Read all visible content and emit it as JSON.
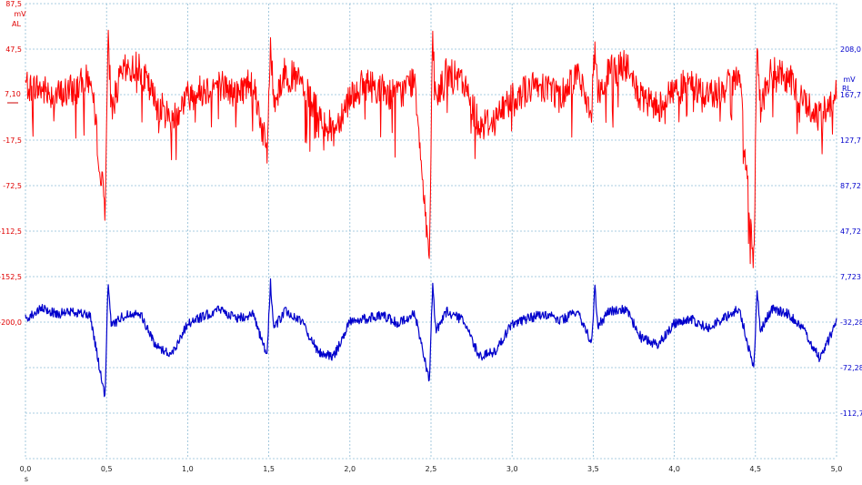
{
  "chart_data": {
    "type": "line",
    "title": "",
    "grid": true,
    "xlabel": "s",
    "x_ticks": [
      "0,0",
      "0,5",
      "1,0",
      "1,5",
      "2,0",
      "2,5",
      "3,0",
      "3,5",
      "4,0",
      "4,5",
      "5,0"
    ],
    "xlim": [
      0,
      5
    ],
    "left_axis": {
      "unit": "mV",
      "channel": "AL",
      "color": "#ff0000",
      "cursor_label": "7,10",
      "ticks": [
        "87,5",
        "47,5",
        "",
        "-17,5",
        "-72,5",
        "-112,5",
        "-152,5",
        "-200,0"
      ]
    },
    "right_axis": {
      "unit": "mV",
      "channel": "RL",
      "color": "#0000cc",
      "ticks": [
        "",
        "208,0",
        "167,7",
        "127,7",
        "87,72",
        "47,72",
        "7,723",
        "-32,28",
        "-72,28",
        "-112,7"
      ]
    },
    "series": [
      {
        "color": "#ff0000",
        "x": [
          0.0,
          0.1,
          0.2,
          0.3,
          0.4,
          0.49,
          0.51,
          0.53,
          0.6,
          0.7,
          0.8,
          0.9,
          1.0,
          1.1,
          1.2,
          1.3,
          1.4,
          1.49,
          1.51,
          1.53,
          1.6,
          1.7,
          1.8,
          1.9,
          2.0,
          2.1,
          2.2,
          2.3,
          2.4,
          2.49,
          2.51,
          2.53,
          2.6,
          2.7,
          2.8,
          2.9,
          3.0,
          3.1,
          3.2,
          3.3,
          3.4,
          3.49,
          3.51,
          3.53,
          3.6,
          3.7,
          3.8,
          3.9,
          4.0,
          4.1,
          4.2,
          4.3,
          4.4,
          4.49,
          4.51,
          4.53,
          4.6,
          4.7,
          4.8,
          4.9,
          5.0
        ],
        "y": [
          10,
          5,
          0,
          5,
          15,
          -95,
          45,
          -10,
          20,
          25,
          -5,
          -20,
          0,
          5,
          10,
          0,
          15,
          -50,
          45,
          -5,
          20,
          10,
          -15,
          -30,
          0,
          10,
          5,
          0,
          15,
          -140,
          45,
          -5,
          20,
          10,
          -25,
          -20,
          0,
          5,
          10,
          0,
          20,
          -15,
          45,
          0,
          20,
          25,
          -5,
          -10,
          5,
          10,
          0,
          5,
          15,
          -140,
          45,
          -10,
          20,
          15,
          -5,
          -20,
          5
        ]
      },
      {
        "color": "#0000cc",
        "x": [
          0.0,
          0.1,
          0.2,
          0.3,
          0.4,
          0.49,
          0.51,
          0.53,
          0.6,
          0.7,
          0.8,
          0.9,
          1.0,
          1.1,
          1.2,
          1.3,
          1.4,
          1.49,
          1.51,
          1.53,
          1.6,
          1.7,
          1.8,
          1.9,
          2.0,
          2.1,
          2.2,
          2.3,
          2.4,
          2.49,
          2.51,
          2.53,
          2.6,
          2.7,
          2.8,
          2.9,
          3.0,
          3.1,
          3.2,
          3.3,
          3.4,
          3.49,
          3.51,
          3.53,
          3.6,
          3.7,
          3.8,
          3.9,
          4.0,
          4.1,
          4.2,
          4.3,
          4.4,
          4.49,
          4.51,
          4.53,
          4.6,
          4.7,
          4.8,
          4.9,
          5.0
        ],
        "y": [
          12,
          20,
          16,
          18,
          14,
          -55,
          44,
          6,
          14,
          18,
          -10,
          -18,
          8,
          14,
          20,
          12,
          16,
          -20,
          44,
          4,
          18,
          10,
          -15,
          -20,
          10,
          12,
          15,
          8,
          16,
          -40,
          40,
          2,
          18,
          10,
          -20,
          -15,
          8,
          12,
          16,
          10,
          18,
          -8,
          38,
          6,
          18,
          20,
          -5,
          -10,
          8,
          12,
          4,
          12,
          20,
          -30,
          38,
          2,
          20,
          16,
          2,
          -22,
          10
        ]
      }
    ]
  }
}
